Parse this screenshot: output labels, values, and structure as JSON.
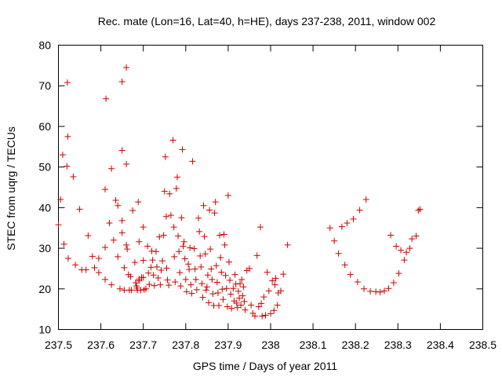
{
  "chart_data": {
    "type": "scatter",
    "title": "Rec. mate (Lon=16, Lat=40, h=HE), days 237-238, 2011, window 002",
    "xlabel": "GPS time / Days of year 2011",
    "ylabel": "STEC from uqrg / TECUs",
    "xlim": [
      237.5,
      238.5
    ],
    "ylim": [
      10,
      80
    ],
    "xticks": [
      237.5,
      237.6,
      237.7,
      237.8,
      237.9,
      238.0,
      238.1,
      238.2,
      238.3,
      238.4,
      238.5
    ],
    "xtick_labels": [
      "237.5",
      "237.6",
      "237.7",
      "237.8",
      "237.9",
      "238",
      "238.1",
      "238.2",
      "238.3",
      "238.4",
      "238.5"
    ],
    "yticks": [
      10,
      20,
      30,
      40,
      50,
      60,
      70,
      80
    ],
    "ytick_labels": [
      "10",
      "20",
      "30",
      "40",
      "50",
      "60",
      "70",
      "80"
    ],
    "grid": false,
    "marker": "+",
    "color": "#cc0000",
    "series": [
      {
        "name": "STEC",
        "points": [
          [
            237.5,
            35.8
          ],
          [
            237.505,
            42.0
          ],
          [
            237.51,
            53.0
          ],
          [
            237.513,
            31.0
          ],
          [
            237.52,
            50.2
          ],
          [
            237.521,
            70.8
          ],
          [
            237.522,
            57.5
          ],
          [
            237.523,
            27.5
          ],
          [
            237.535,
            47.6
          ],
          [
            237.54,
            25.9
          ],
          [
            237.55,
            39.6
          ],
          [
            237.555,
            24.7
          ],
          [
            237.565,
            24.7
          ],
          [
            237.57,
            33.1
          ],
          [
            237.58,
            28.0
          ],
          [
            237.585,
            25.2
          ],
          [
            237.595,
            27.5
          ],
          [
            237.595,
            24.0
          ],
          [
            237.61,
            44.5
          ],
          [
            237.61,
            30.2
          ],
          [
            237.61,
            22.3
          ],
          [
            237.612,
            66.8
          ],
          [
            237.62,
            36.2
          ],
          [
            237.625,
            49.6
          ],
          [
            237.625,
            21.0
          ],
          [
            237.63,
            32.0
          ],
          [
            237.635,
            41.8
          ],
          [
            237.64,
            40.5
          ],
          [
            237.64,
            27.9
          ],
          [
            237.645,
            20.0
          ],
          [
            237.65,
            71.0
          ],
          [
            237.65,
            54.1
          ],
          [
            237.65,
            33.8
          ],
          [
            237.65,
            36.8
          ],
          [
            237.655,
            25.2
          ],
          [
            237.655,
            19.7
          ],
          [
            237.66,
            74.5
          ],
          [
            237.66,
            50.7
          ],
          [
            237.66,
            30.8
          ],
          [
            237.662,
            29.8
          ],
          [
            237.665,
            23.5
          ],
          [
            237.667,
            19.7
          ],
          [
            237.67,
            23.0
          ],
          [
            237.672,
            19.7
          ],
          [
            237.675,
            39.3
          ],
          [
            237.68,
            26.5
          ],
          [
            237.682,
            21.5
          ],
          [
            237.684,
            20.7
          ],
          [
            237.685,
            20.2
          ],
          [
            237.686,
            19.7
          ],
          [
            237.688,
            41.4
          ],
          [
            237.69,
            31.6
          ],
          [
            237.69,
            22.4
          ],
          [
            237.69,
            22.0
          ],
          [
            237.694,
            19.7
          ],
          [
            237.696,
            22.8
          ],
          [
            237.7,
            35.2
          ],
          [
            237.7,
            27.0
          ],
          [
            237.7,
            22.8
          ],
          [
            237.702,
            19.8
          ],
          [
            237.706,
            20.0
          ],
          [
            237.71,
            30.5
          ],
          [
            237.712,
            23.9
          ],
          [
            237.714,
            21.1
          ],
          [
            237.718,
            25.3
          ],
          [
            237.72,
            29.3
          ],
          [
            237.722,
            27.1
          ],
          [
            237.724,
            23.4
          ],
          [
            237.726,
            20.8
          ],
          [
            237.73,
            29.2
          ],
          [
            237.732,
            25.4
          ],
          [
            237.735,
            22.7
          ],
          [
            237.738,
            32.8
          ],
          [
            237.74,
            21.0
          ],
          [
            237.742,
            24.6
          ],
          [
            237.745,
            26.9
          ],
          [
            237.748,
            33.2
          ],
          [
            237.75,
            44.0
          ],
          [
            237.752,
            52.5
          ],
          [
            237.754,
            37.8
          ],
          [
            237.755,
            25.1
          ],
          [
            237.757,
            22.2
          ],
          [
            237.76,
            20.9
          ],
          [
            237.762,
            43.4
          ],
          [
            237.765,
            38.1
          ],
          [
            237.77,
            56.6
          ],
          [
            237.772,
            35.2
          ],
          [
            237.773,
            27.9
          ],
          [
            237.775,
            21.7
          ],
          [
            237.778,
            44.7
          ],
          [
            237.78,
            47.5
          ],
          [
            237.782,
            33.0
          ],
          [
            237.784,
            29.2
          ],
          [
            237.786,
            24.0
          ],
          [
            237.788,
            20.7
          ],
          [
            237.79,
            37.5
          ],
          [
            237.792,
            54.3
          ],
          [
            237.794,
            30.5
          ],
          [
            237.796,
            31.6
          ],
          [
            237.798,
            27.4
          ],
          [
            237.8,
            22.3
          ],
          [
            237.802,
            19.3
          ],
          [
            237.806,
            26.1
          ],
          [
            237.808,
            24.8
          ],
          [
            237.81,
            30.1
          ],
          [
            237.812,
            21.0
          ],
          [
            237.814,
            18.9
          ],
          [
            237.816,
            51.4
          ],
          [
            237.82,
            29.9
          ],
          [
            237.822,
            24.9
          ],
          [
            237.824,
            22.3
          ],
          [
            237.826,
            19.8
          ],
          [
            237.83,
            37.4
          ],
          [
            237.832,
            34.1
          ],
          [
            237.834,
            28.1
          ],
          [
            237.836,
            25.4
          ],
          [
            237.838,
            21.3
          ],
          [
            237.84,
            17.9
          ],
          [
            237.842,
            40.5
          ],
          [
            237.844,
            32.9
          ],
          [
            237.846,
            28.6
          ],
          [
            237.848,
            19.7
          ],
          [
            237.85,
            20.5
          ],
          [
            237.852,
            23.4
          ],
          [
            237.854,
            16.6
          ],
          [
            237.856,
            39.4
          ],
          [
            237.858,
            29.8
          ],
          [
            237.86,
            24.9
          ],
          [
            237.862,
            22.3
          ],
          [
            237.864,
            18.8
          ],
          [
            237.866,
            15.9
          ],
          [
            237.868,
            38.7
          ],
          [
            237.87,
            41.4
          ],
          [
            237.872,
            25.7
          ],
          [
            237.874,
            21.6
          ],
          [
            237.876,
            19.0
          ],
          [
            237.878,
            15.9
          ],
          [
            237.88,
            33.2
          ],
          [
            237.882,
            27.7
          ],
          [
            237.884,
            24.1
          ],
          [
            237.886,
            19.9
          ],
          [
            237.888,
            17.4
          ],
          [
            237.89,
            33.4
          ],
          [
            237.892,
            30.8
          ],
          [
            237.894,
            23.3
          ],
          [
            237.896,
            20.1
          ],
          [
            237.898,
            15.6
          ],
          [
            237.9,
            43.0
          ],
          [
            237.902,
            26.6
          ],
          [
            237.904,
            22.1
          ],
          [
            237.906,
            18.7
          ],
          [
            237.908,
            15.2
          ],
          [
            237.912,
            20.1
          ],
          [
            237.914,
            17.0
          ],
          [
            237.916,
            23.5
          ],
          [
            237.918,
            21.2
          ],
          [
            237.92,
            16.5
          ],
          [
            237.922,
            15.4
          ],
          [
            237.924,
            19.4
          ],
          [
            237.926,
            17.7
          ],
          [
            237.928,
            21.3
          ],
          [
            237.93,
            16.0
          ],
          [
            237.932,
            22.3
          ],
          [
            237.934,
            18.3
          ],
          [
            237.936,
            20.5
          ],
          [
            237.938,
            16.9
          ],
          [
            237.94,
            14.8
          ],
          [
            237.944,
            24.5
          ],
          [
            237.95,
            25.0
          ],
          [
            237.954,
            16.0
          ],
          [
            237.958,
            14.0
          ],
          [
            237.963,
            13.3
          ],
          [
            237.968,
            28.2
          ],
          [
            237.972,
            15.6
          ],
          [
            237.976,
            35.2
          ],
          [
            237.978,
            16.4
          ],
          [
            237.98,
            13.3
          ],
          [
            237.984,
            18.0
          ],
          [
            237.988,
            13.5
          ],
          [
            237.992,
            24.1
          ],
          [
            237.996,
            19.5
          ],
          [
            238.0,
            13.9
          ],
          [
            238.004,
            22.0
          ],
          [
            238.008,
            14.7
          ],
          [
            238.01,
            21.0
          ],
          [
            238.012,
            22.6
          ],
          [
            238.016,
            16.0
          ],
          [
            238.018,
            19.0
          ],
          [
            238.024,
            19.5
          ],
          [
            238.03,
            23.6
          ],
          [
            238.04,
            30.8
          ],
          [
            238.14,
            35.0
          ],
          [
            238.15,
            31.8
          ],
          [
            238.16,
            28.7
          ],
          [
            238.168,
            35.3
          ],
          [
            238.175,
            25.9
          ],
          [
            238.18,
            36.2
          ],
          [
            238.188,
            23.5
          ],
          [
            238.195,
            37.2
          ],
          [
            238.205,
            21.7
          ],
          [
            238.21,
            39.4
          ],
          [
            238.22,
            20.0
          ],
          [
            238.225,
            42.0
          ],
          [
            238.235,
            19.4
          ],
          [
            238.248,
            19.3
          ],
          [
            238.258,
            19.2
          ],
          [
            238.268,
            19.5
          ],
          [
            238.278,
            20.1
          ],
          [
            238.283,
            33.2
          ],
          [
            238.29,
            21.5
          ],
          [
            238.296,
            30.5
          ],
          [
            238.302,
            23.8
          ],
          [
            238.307,
            29.5
          ],
          [
            238.315,
            27.1
          ],
          [
            238.32,
            29.0
          ],
          [
            238.328,
            30.0
          ],
          [
            238.333,
            32.3
          ],
          [
            238.343,
            33.0
          ],
          [
            238.348,
            39.3
          ],
          [
            238.352,
            39.6
          ]
        ]
      }
    ]
  }
}
